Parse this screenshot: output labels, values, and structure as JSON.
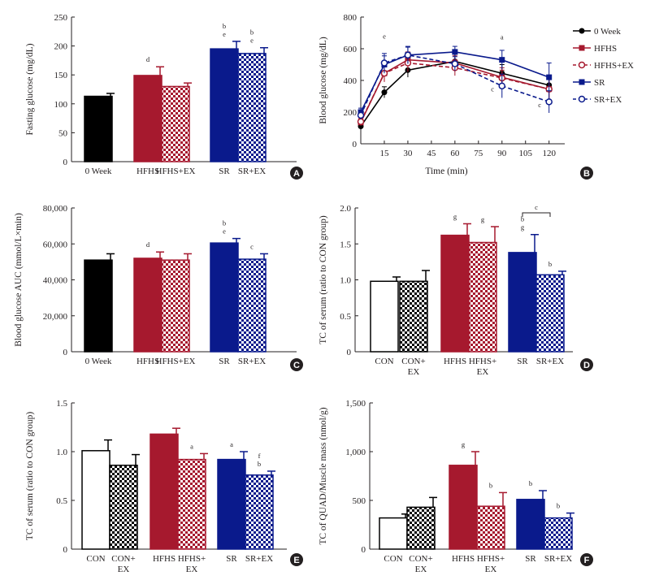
{
  "figure": {
    "width": 795,
    "height": 714
  },
  "colors": {
    "black": "#000000",
    "red": "#a6192e",
    "navy": "#0a1a8c",
    "white": "#ffffff",
    "axis": "#231f20"
  },
  "chart_data": [
    {
      "id": "A",
      "type": "bar",
      "badge": "A",
      "ylabel": "Fasting glucose (mg/dL)",
      "ylim": [
        0,
        250
      ],
      "yticks": [
        0,
        50,
        100,
        150,
        200,
        250
      ],
      "categories": [
        "0 Week",
        "HFHS",
        "HFHS+EX",
        "SR",
        "SR+EX"
      ],
      "values": [
        113,
        149,
        130,
        195,
        187
      ],
      "errors": [
        5,
        15,
        6,
        13,
        10
      ],
      "fills": [
        "solid-black",
        "solid-red",
        "check-red",
        "solid-navy",
        "check-navy"
      ],
      "annotations": [
        [],
        [
          "d"
        ],
        [],
        [
          "b",
          "e"
        ],
        [
          "b",
          "e"
        ]
      ]
    },
    {
      "id": "B",
      "type": "line",
      "badge": "B",
      "ylabel": "Blood glucose (mg/dL)",
      "xlabel": "Time (min)",
      "ylim": [
        0,
        800
      ],
      "yticks": [
        0,
        200,
        400,
        600,
        800
      ],
      "xlim": [
        0,
        130
      ],
      "xticks": [
        15,
        30,
        45,
        60,
        75,
        90,
        105,
        120
      ],
      "x": [
        0,
        15,
        30,
        60,
        90,
        120
      ],
      "series": [
        {
          "name": "0 Week",
          "color": "#000000",
          "marker": "filled-circle",
          "dash": false,
          "values": [
            110,
            325,
            465,
            520,
            445,
            370
          ],
          "errors": [
            20,
            35,
            45,
            45,
            55,
            45
          ]
        },
        {
          "name": "HFHS",
          "color": "#a6192e",
          "marker": "filled-square",
          "dash": false,
          "values": [
            135,
            445,
            530,
            510,
            420,
            345
          ],
          "errors": [
            20,
            55,
            50,
            45,
            60,
            80
          ]
        },
        {
          "name": "HFHS+EX",
          "color": "#a6192e",
          "marker": "open-circle",
          "dash": true,
          "values": [
            140,
            445,
            510,
            480,
            415,
            345
          ],
          "errors": [
            20,
            50,
            55,
            50,
            50,
            70
          ]
        },
        {
          "name": "SR",
          "color": "#0a1a8c",
          "marker": "filled-square",
          "dash": false,
          "values": [
            200,
            500,
            560,
            580,
            530,
            420
          ],
          "errors": [
            25,
            55,
            50,
            35,
            60,
            90
          ]
        },
        {
          "name": "SR+EX",
          "color": "#0a1a8c",
          "marker": "open-circle",
          "dash": true,
          "values": [
            180,
            510,
            560,
            505,
            365,
            265
          ],
          "errors": [
            25,
            60,
            55,
            45,
            75,
            70
          ]
        }
      ],
      "annotations": [
        {
          "x": 15,
          "y": 665,
          "text": "e"
        },
        {
          "x": 90,
          "y": 660,
          "text": "a"
        },
        {
          "x": 84,
          "y": 330,
          "text": "c"
        },
        {
          "x": 114,
          "y": 230,
          "text": "c"
        }
      ]
    },
    {
      "id": "C",
      "type": "bar",
      "badge": "C",
      "ylabel": "Blood glucose AUC (mmol/L×min)",
      "ylim": [
        0,
        80000
      ],
      "yticks": [
        0,
        20000,
        40000,
        60000,
        80000
      ],
      "ytick_labels": [
        "0",
        "20,000",
        "40,000",
        "60,000",
        "80,000"
      ],
      "categories": [
        "0 Week",
        "HFHS",
        "HFHS+EX",
        "SR",
        "SR+EX"
      ],
      "values": [
        51000,
        52000,
        51000,
        60500,
        51500
      ],
      "errors": [
        3500,
        3500,
        3500,
        2500,
        3000
      ],
      "fills": [
        "solid-black",
        "solid-red",
        "check-red",
        "solid-navy",
        "check-navy"
      ],
      "annotations": [
        [],
        [
          "d"
        ],
        [],
        [
          "b",
          "e"
        ],
        [
          "c"
        ]
      ]
    },
    {
      "id": "D",
      "type": "bar",
      "badge": "D",
      "ylabel": "TC of serum (ratio to CON group)",
      "ylim": [
        0,
        2.0
      ],
      "yticks": [
        0,
        0.5,
        1.0,
        1.5,
        2.0
      ],
      "ytick_labels": [
        "0",
        "0.5",
        "1.0",
        "1.5",
        "2.0"
      ],
      "categories": [
        "CON",
        "CON+ EX",
        "HFHS",
        "HFHS+ EX",
        "SR",
        "SR+EX"
      ],
      "values": [
        0.98,
        0.98,
        1.62,
        1.52,
        1.38,
        1.07
      ],
      "errors": [
        0.06,
        0.15,
        0.16,
        0.22,
        0.25,
        0.05
      ],
      "fills": [
        "open",
        "check-black",
        "solid-red",
        "check-red",
        "solid-navy",
        "check-navy"
      ],
      "annotations": [
        [],
        [],
        [
          "g"
        ],
        [
          "g"
        ],
        [
          "b",
          "g"
        ],
        [
          "b"
        ]
      ],
      "bracket": {
        "from": 4,
        "to": 5,
        "label": "c"
      }
    },
    {
      "id": "E",
      "type": "bar",
      "badge": "E",
      "ylabel": "TC of serum (ratio to CON group)",
      "ylim": [
        0,
        1.5
      ],
      "yticks": [
        0,
        0.5,
        1.0,
        1.5
      ],
      "ytick_labels": [
        "0",
        "0.5",
        "1.0",
        "1.5"
      ],
      "categories": [
        "CON",
        "CON+ EX",
        "HFHS",
        "HFHS+ EX",
        "SR",
        "SR+EX"
      ],
      "values": [
        1.01,
        0.86,
        1.18,
        0.92,
        0.92,
        0.76
      ],
      "errors": [
        0.11,
        0.11,
        0.06,
        0.06,
        0.08,
        0.04
      ],
      "fills": [
        "open",
        "check-black",
        "solid-red",
        "check-red",
        "solid-navy",
        "check-navy"
      ],
      "annotations": [
        [],
        [],
        [],
        [
          "a"
        ],
        [
          "a"
        ],
        [
          "f",
          "b"
        ]
      ]
    },
    {
      "id": "F",
      "type": "bar",
      "badge": "F",
      "ylabel": "TC of QUAD/Muscle mass (nmol/g)",
      "ylim": [
        0,
        1500
      ],
      "yticks": [
        0,
        500,
        1000,
        1500
      ],
      "ytick_labels": [
        "0",
        "500",
        "1,000",
        "1,500"
      ],
      "categories": [
        "CON",
        "CON+ EX",
        "HFHS",
        "HFHS+ EX",
        "SR",
        "SR+EX"
      ],
      "values": [
        320,
        430,
        860,
        440,
        510,
        320
      ],
      "errors": [
        40,
        100,
        140,
        140,
        90,
        50
      ],
      "fills": [
        "open",
        "check-black",
        "solid-red",
        "check-red",
        "solid-navy",
        "check-navy"
      ],
      "annotations": [
        [],
        [],
        [
          "g"
        ],
        [
          "b"
        ],
        [
          "b"
        ],
        [
          "b"
        ]
      ]
    }
  ]
}
